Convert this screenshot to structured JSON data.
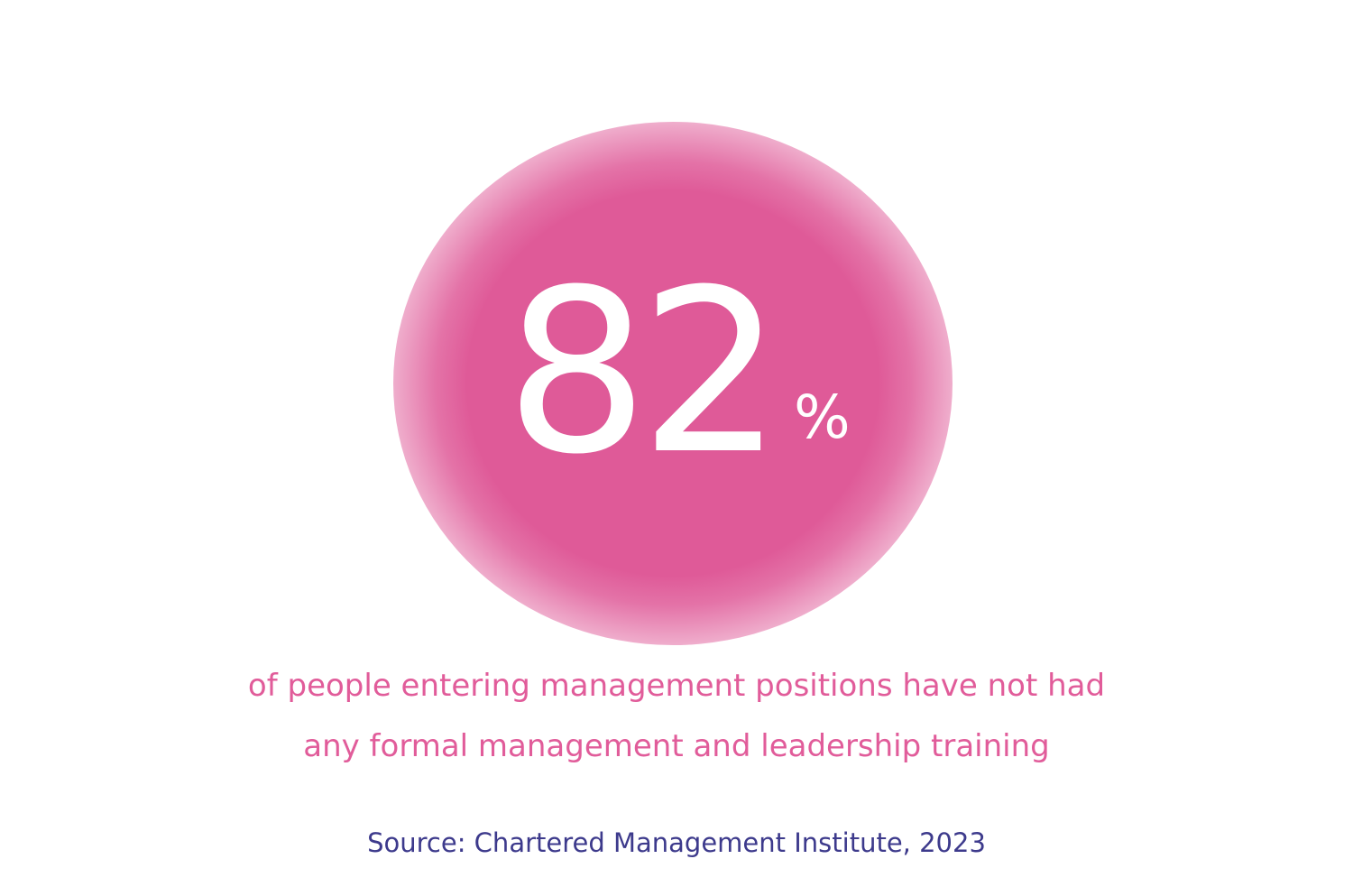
{
  "stat": {
    "value": "82",
    "unit": "%"
  },
  "description": {
    "line1": "of people entering management positions have not had",
    "line2": "any formal management and leadership training"
  },
  "source": {
    "text": "Source: Chartered Management Institute, 2023"
  },
  "colors": {
    "accent_pink": "#df5a98",
    "text_pink": "#e15c9a",
    "source_purple": "#3d3a8c",
    "background": "#ffffff"
  }
}
